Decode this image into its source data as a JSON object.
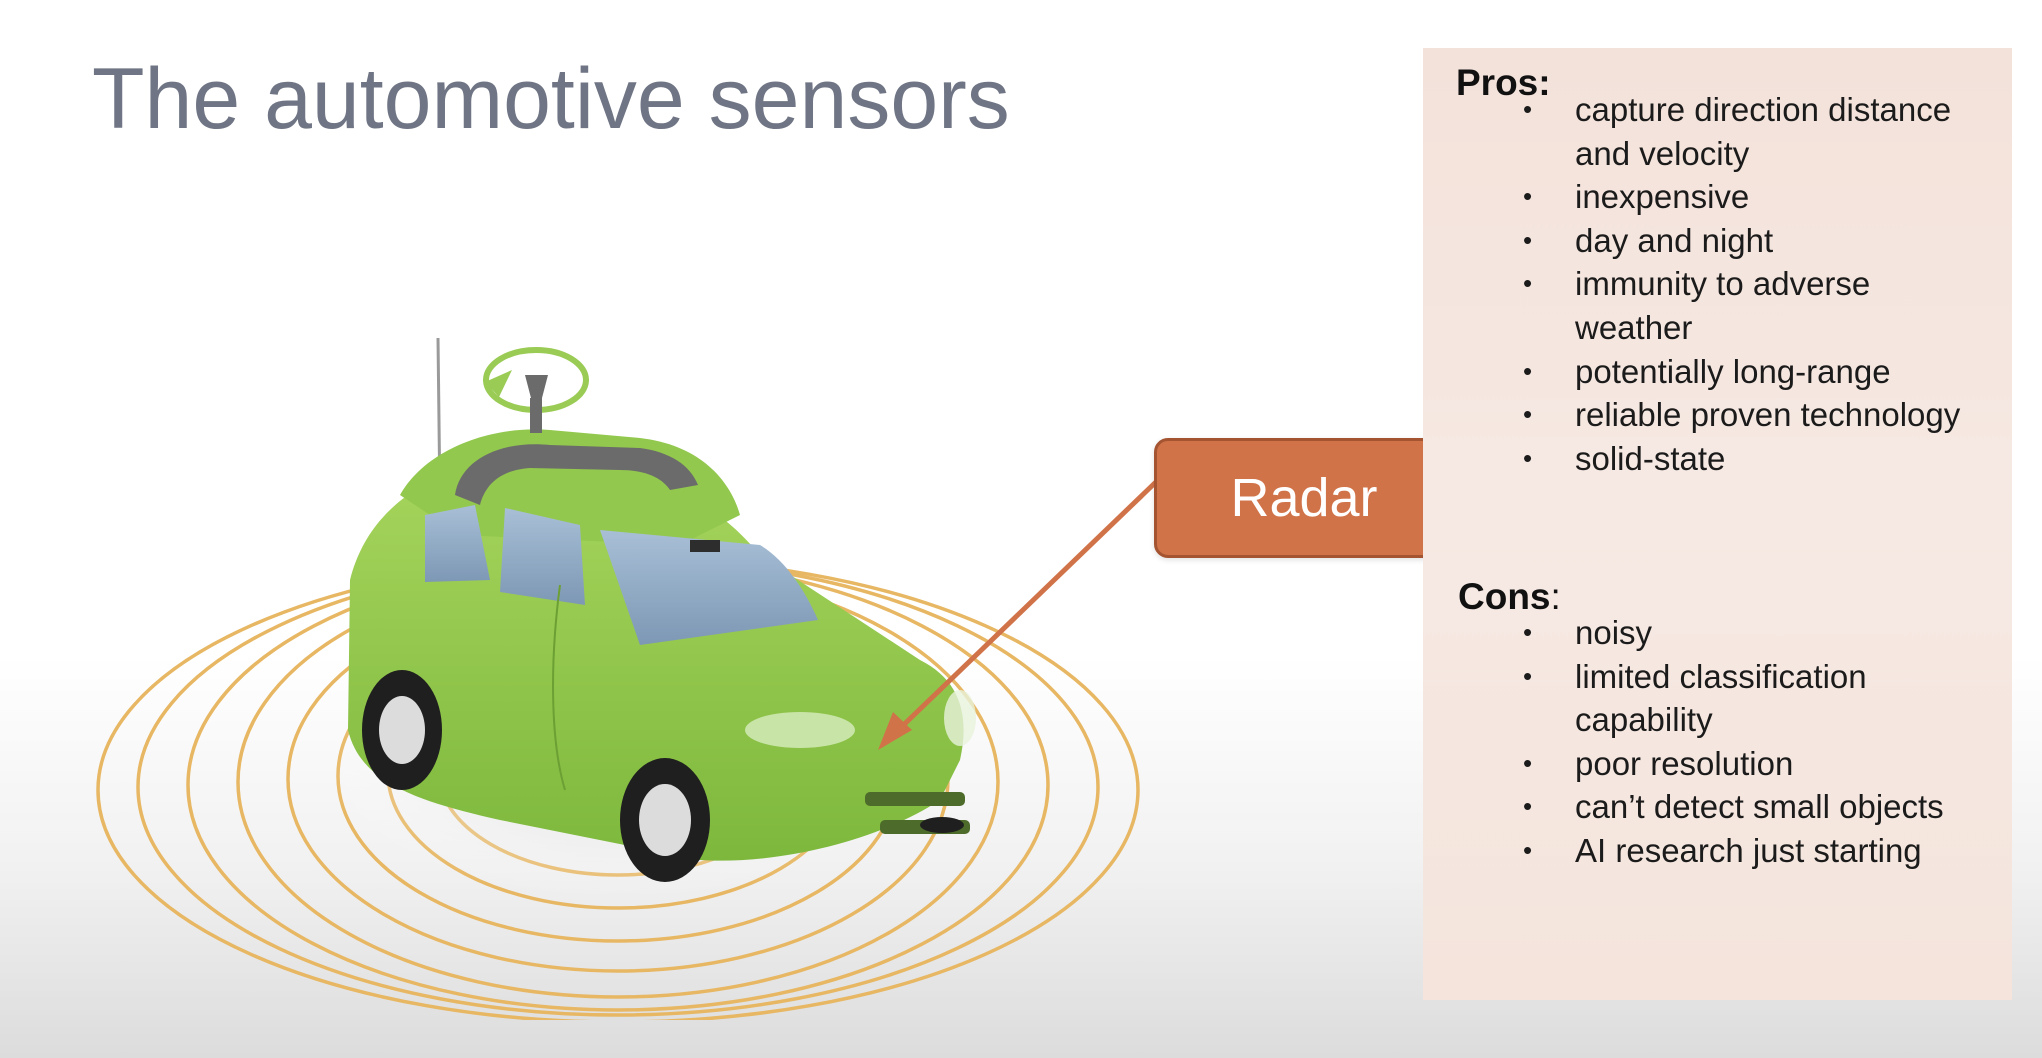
{
  "slide": {
    "title": "The automotive sensors",
    "radar_label": "Radar"
  },
  "pros": {
    "heading": "Pros:",
    "items": [
      "capture direction distance and velocity",
      "inexpensive",
      "day and night",
      "immunity to adverse weather",
      "potentially long-range",
      "reliable proven technology",
      "solid-state"
    ]
  },
  "cons": {
    "heading": "Cons",
    "heading_colon": ":",
    "items": [
      "noisy",
      "limited classification capability",
      "poor resolution",
      "can’t detect small objects",
      "AI research just starting"
    ]
  },
  "colors": {
    "title": "#6f7584",
    "car_body": "#8fc44a",
    "radar_box": "#d17349",
    "radar_rings": "#e7b763",
    "panel_bg": "#f4e4dc"
  },
  "icons": {
    "car": "self-driving-car-icon",
    "lidar": "rotating-lidar-icon",
    "antenna": "antenna-icon",
    "arrow": "arrow-icon"
  }
}
